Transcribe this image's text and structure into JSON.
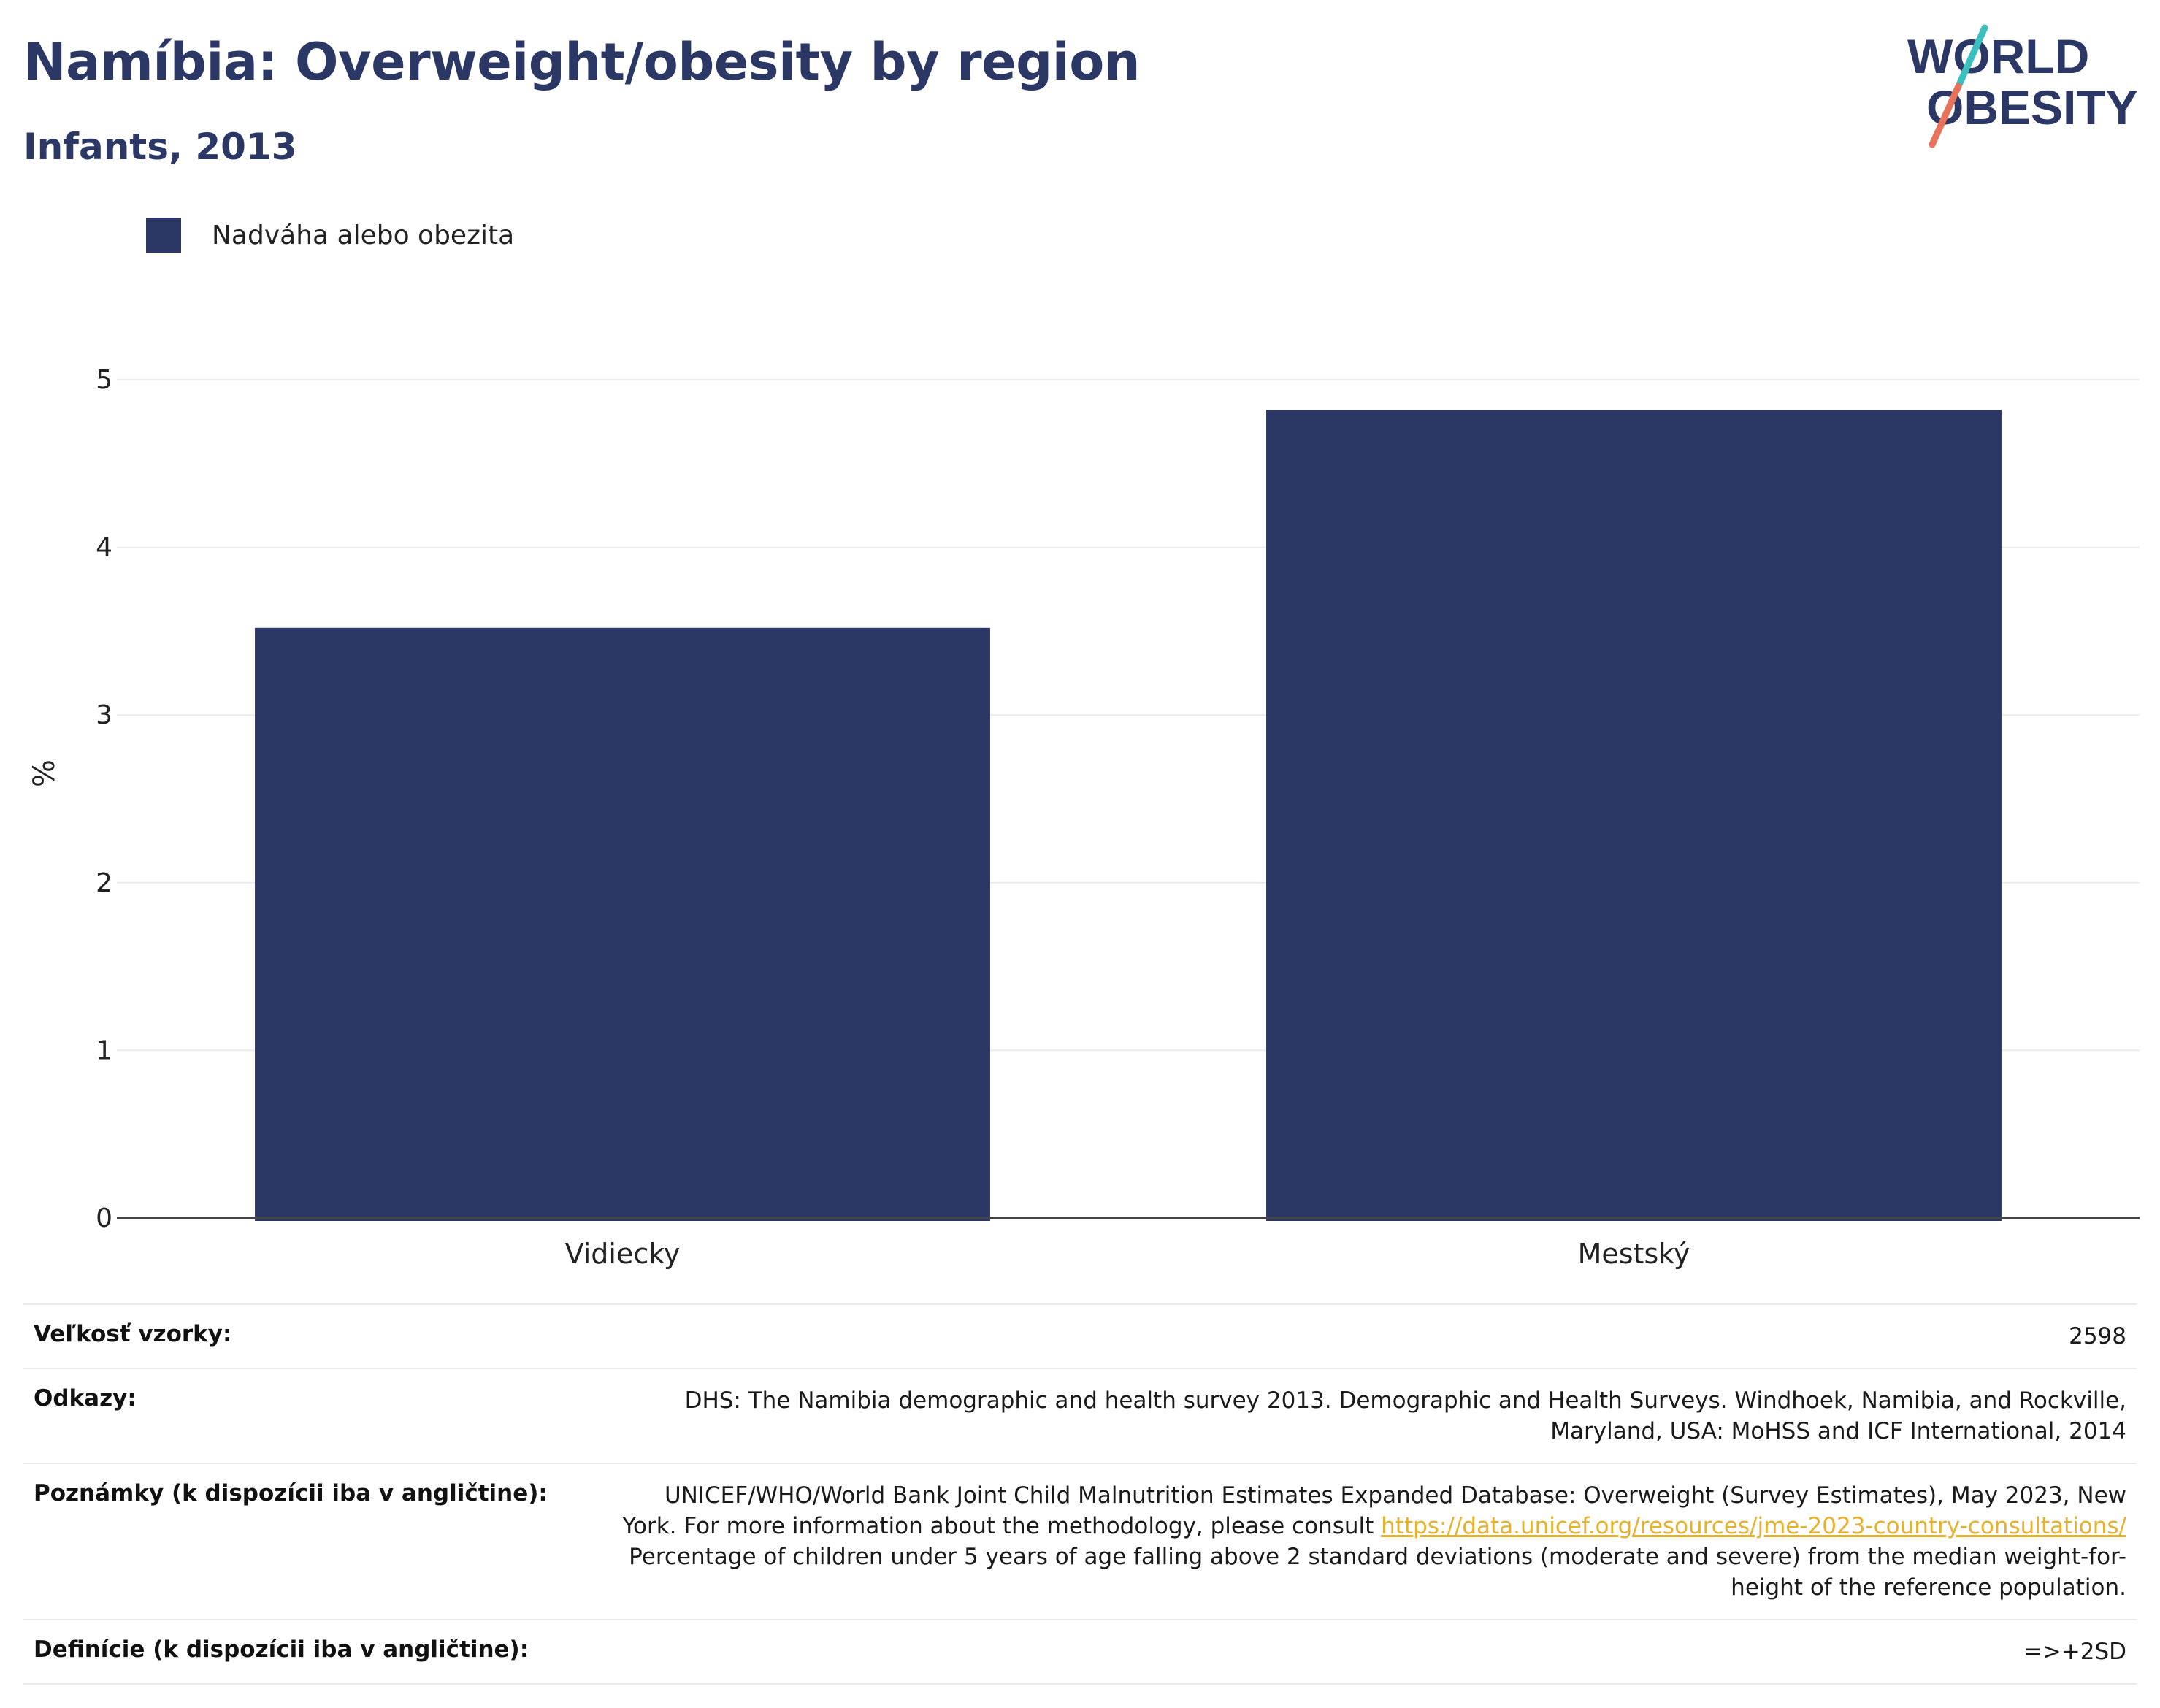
{
  "header": {
    "title": "Namíbia: Overweight/obesity by region",
    "subtitle": "Infants, 2013"
  },
  "logo": {
    "line1": "WORLD",
    "line2": "OBESITY",
    "colors": {
      "text": "#2b3764",
      "slash_top": "#3bbfbf",
      "slash_bottom": "#e8725a"
    }
  },
  "chart_data": {
    "type": "bar",
    "categories": [
      "Vidiecky",
      "Mestský"
    ],
    "series": [
      {
        "name": "Nadváha alebo obezita",
        "values": [
          3.52,
          4.82
        ],
        "color": "#2b3764"
      }
    ],
    "ylabel": "%",
    "ylim": [
      0,
      5
    ],
    "yticks": [
      "0",
      "1",
      "2",
      "3",
      "4",
      "5"
    ],
    "grid": true,
    "legend_position": "top-left"
  },
  "info": {
    "rows": [
      {
        "key": "Veľkosť vzorky:",
        "value": "2598"
      },
      {
        "key": "Odkazy:",
        "value": "DHS: The Namibia demographic and health survey 2013. Demographic and Health Surveys. Windhoek, Namibia, and Rockville, Maryland, USA: MoHSS and ICF International, 2014"
      },
      {
        "key": "Poznámky (k dispozícii iba v angličtine):",
        "value_before": "UNICEF/WHO/World Bank Joint Child Malnutrition Estimates Expanded Database: Overweight (Survey Estimates), May 2023, New York. For more information about the methodology, please consult ",
        "link": "https://data.unicef.org/resources/jme-2023-country-consultations/",
        "value_after": " Percentage of children under 5 years of age falling above 2 standard deviations (moderate and severe) from the median weight-for-height of the reference population."
      },
      {
        "key": "Definície (k dispozícii iba v angličtine):",
        "value": "=>+2SD"
      }
    ]
  }
}
